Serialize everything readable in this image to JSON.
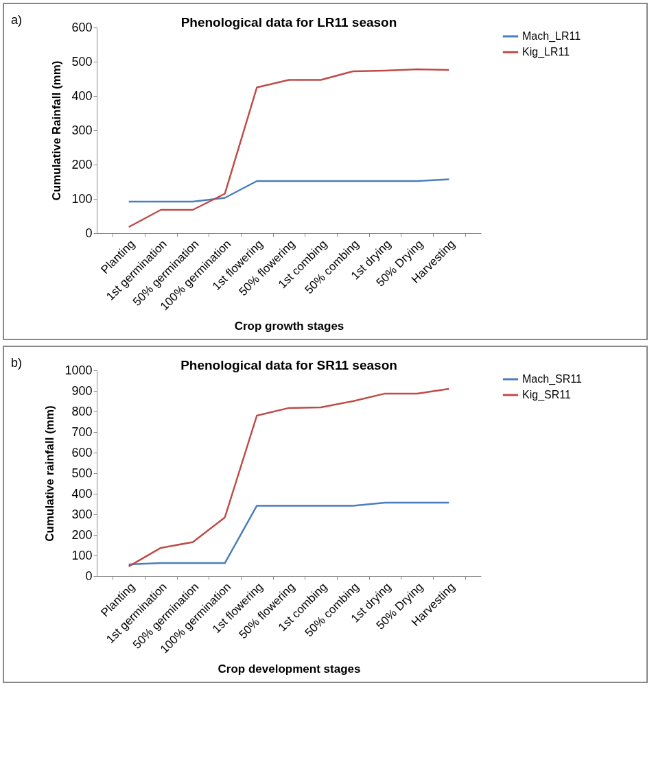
{
  "chart_data": [
    {
      "type": "line",
      "title": "Phenological data for LR11 season",
      "xlabel": "Crop growth stages",
      "ylabel": "Cumulative Rainfall (mm)",
      "annotations": [
        "a)"
      ],
      "categories": [
        "Planting",
        "1st germination",
        "50% germination",
        "100% germination",
        "1st flowering",
        "50% flowering",
        "1st combing",
        "50% combing",
        "1st drying",
        "50% Drying",
        "Harvesting"
      ],
      "series": [
        {
          "name": "Mach_LR11",
          "color": "#4a7ebb",
          "values": [
            92,
            92,
            92,
            103,
            152,
            152,
            152,
            152,
            152,
            152,
            157
          ]
        },
        {
          "name": "Kig_LR11",
          "color": "#be4b48",
          "values": [
            18,
            68,
            68,
            115,
            425,
            447,
            447,
            472,
            474,
            478,
            476
          ]
        }
      ],
      "ylim": [
        0,
        600
      ],
      "yticks": [
        0,
        100,
        200,
        300,
        400,
        500,
        600
      ],
      "grid": false,
      "legend": "right"
    },
    {
      "type": "line",
      "title": "Phenological data for SR11 season",
      "xlabel": "Crop development stages",
      "ylabel": "Cumulative rainfall (mm)",
      "annotations": [
        "b)"
      ],
      "categories": [
        "Planting",
        "1st germination",
        "50% germination",
        "100% germination",
        "1st flowering",
        "50% flowering",
        "1st combing",
        "50% combing",
        "1st drying",
        "50% Drying",
        "Harvesting"
      ],
      "series": [
        {
          "name": "Mach_SR11",
          "color": "#4a7ebb",
          "values": [
            57,
            63,
            63,
            63,
            342,
            342,
            342,
            342,
            357,
            357,
            357
          ]
        },
        {
          "name": "Kig_SR11",
          "color": "#be4b48",
          "values": [
            47,
            137,
            165,
            285,
            780,
            817,
            820,
            850,
            887,
            887,
            910
          ]
        }
      ],
      "ylim": [
        0,
        1000
      ],
      "yticks": [
        0,
        100,
        200,
        300,
        400,
        500,
        600,
        700,
        800,
        900,
        1000
      ],
      "grid": false,
      "legend": "right"
    }
  ]
}
